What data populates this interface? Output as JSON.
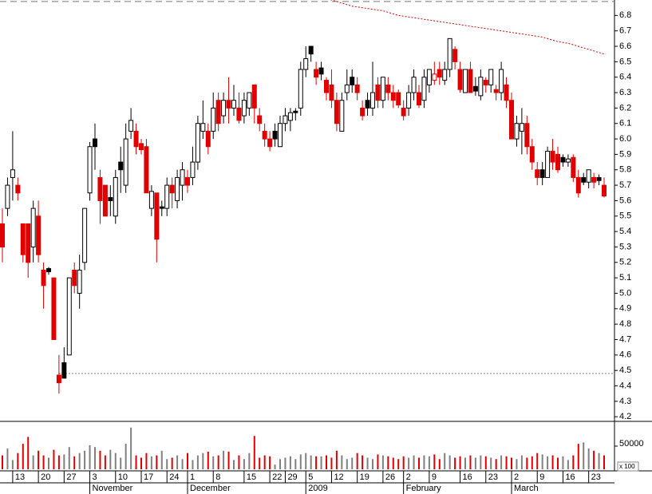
{
  "chart_data": {
    "type": "candlestick",
    "ohlc": [
      [
        5.45,
        5.55,
        5.2,
        5.3
      ],
      [
        5.55,
        5.75,
        5.5,
        5.7
      ],
      [
        5.75,
        6.05,
        5.6,
        5.8
      ],
      [
        5.7,
        5.75,
        5.6,
        5.65
      ],
      [
        5.45,
        5.45,
        5.2,
        5.25
      ],
      [
        5.45,
        5.45,
        5.1,
        5.2
      ],
      [
        5.3,
        5.6,
        5.2,
        5.55
      ],
      [
        5.5,
        5.6,
        5.2,
        5.25
      ],
      [
        5.15,
        5.2,
        4.9,
        5.05
      ],
      [
        5.16,
        5.17,
        5.12,
        5.14
      ],
      [
        5.1,
        5.1,
        4.7,
        4.7
      ],
      [
        4.47,
        4.6,
        4.35,
        4.42
      ],
      [
        4.55,
        4.65,
        4.45,
        4.45
      ],
      [
        4.6,
        5.1,
        4.6,
        5.1
      ],
      [
        5.15,
        5.2,
        5.0,
        5.05
      ],
      [
        5.0,
        5.25,
        4.9,
        5.15
      ],
      [
        5.2,
        5.55,
        5.15,
        5.55
      ],
      [
        5.65,
        5.98,
        5.6,
        5.95
      ],
      [
        6.0,
        6.1,
        5.8,
        5.95
      ],
      [
        5.75,
        5.8,
        5.45,
        5.6
      ],
      [
        5.7,
        5.7,
        5.5,
        5.5
      ],
      [
        5.62,
        5.7,
        5.5,
        5.6
      ],
      [
        5.5,
        5.8,
        5.45,
        5.75
      ],
      [
        5.85,
        5.95,
        5.65,
        5.8
      ],
      [
        5.7,
        6.1,
        5.65,
        6.0
      ],
      [
        6.05,
        6.2,
        6.0,
        6.12
      ],
      [
        6.05,
        6.1,
        5.9,
        5.95
      ],
      [
        5.97,
        6.0,
        5.9,
        5.93
      ],
      [
        5.95,
        6.0,
        5.65,
        5.65
      ],
      [
        5.55,
        5.7,
        5.5,
        5.66
      ],
      [
        5.65,
        5.65,
        5.2,
        5.35
      ],
      [
        5.56,
        5.6,
        5.5,
        5.55
      ],
      [
        5.55,
        5.75,
        5.5,
        5.7
      ],
      [
        5.7,
        5.75,
        5.55,
        5.65
      ],
      [
        5.6,
        5.8,
        5.55,
        5.75
      ],
      [
        5.7,
        5.85,
        5.6,
        5.8
      ],
      [
        5.75,
        5.8,
        5.65,
        5.7
      ],
      [
        5.75,
        5.95,
        5.7,
        5.85
      ],
      [
        5.85,
        6.15,
        5.8,
        6.1
      ],
      [
        6.05,
        6.25,
        6.0,
        6.1
      ],
      [
        6.05,
        6.1,
        5.9,
        5.95
      ],
      [
        6.05,
        6.3,
        6.0,
        6.2
      ],
      [
        6.25,
        6.3,
        6.05,
        6.1
      ],
      [
        6.15,
        6.3,
        6.1,
        6.25
      ],
      [
        6.25,
        6.4,
        6.1,
        6.2
      ],
      [
        6.2,
        6.35,
        6.15,
        6.25
      ],
      [
        6.2,
        6.3,
        6.1,
        6.12
      ],
      [
        6.15,
        6.3,
        6.1,
        6.25
      ],
      [
        6.2,
        6.3,
        6.15,
        6.3
      ],
      [
        6.35,
        6.35,
        6.1,
        6.2
      ],
      [
        6.15,
        6.2,
        6.05,
        6.1
      ],
      [
        6.05,
        6.1,
        5.95,
        6.0
      ],
      [
        6.0,
        6.05,
        5.92,
        5.95
      ],
      [
        6.05,
        6.1,
        5.95,
        6.0
      ],
      [
        5.95,
        6.15,
        5.95,
        6.1
      ],
      [
        6.1,
        6.2,
        6.05,
        6.15
      ],
      [
        6.12,
        6.2,
        6.05,
        6.17
      ],
      [
        6.18,
        6.2,
        6.12,
        6.17
      ],
      [
        6.2,
        6.5,
        6.15,
        6.45
      ],
      [
        6.45,
        6.6,
        6.4,
        6.52
      ],
      [
        6.6,
        6.6,
        6.5,
        6.55
      ],
      [
        6.45,
        6.5,
        6.35,
        6.4
      ],
      [
        6.46,
        6.5,
        6.38,
        6.42
      ],
      [
        6.38,
        6.4,
        6.25,
        6.3
      ],
      [
        6.35,
        6.45,
        6.2,
        6.25
      ],
      [
        6.25,
        6.3,
        6.05,
        6.1
      ],
      [
        6.05,
        6.3,
        6.05,
        6.25
      ],
      [
        6.3,
        6.45,
        6.25,
        6.35
      ],
      [
        6.4,
        6.45,
        6.3,
        6.35
      ],
      [
        6.35,
        6.4,
        6.25,
        6.3
      ],
      [
        6.2,
        6.25,
        6.12,
        6.15
      ],
      [
        6.25,
        6.3,
        6.15,
        6.2
      ],
      [
        6.2,
        6.5,
        6.15,
        6.3
      ],
      [
        6.35,
        6.4,
        6.2,
        6.25
      ],
      [
        6.25,
        6.4,
        6.2,
        6.4
      ],
      [
        6.35,
        6.4,
        6.25,
        6.3
      ],
      [
        6.3,
        6.35,
        6.2,
        6.25
      ],
      [
        6.3,
        6.32,
        6.2,
        6.22
      ],
      [
        6.2,
        6.25,
        6.12,
        6.15
      ],
      [
        6.2,
        6.35,
        6.15,
        6.3
      ],
      [
        6.3,
        6.45,
        6.25,
        6.4
      ],
      [
        6.3,
        6.35,
        6.2,
        6.22
      ],
      [
        6.25,
        6.45,
        6.2,
        6.4
      ],
      [
        6.35,
        6.45,
        6.3,
        6.45
      ],
      [
        6.38,
        6.5,
        6.35,
        6.42
      ],
      [
        6.45,
        6.5,
        6.35,
        6.4
      ],
      [
        6.38,
        6.5,
        6.35,
        6.45
      ],
      [
        6.45,
        6.65,
        6.4,
        6.65
      ],
      [
        6.58,
        6.6,
        6.45,
        6.5
      ],
      [
        6.45,
        6.5,
        6.3,
        6.32
      ],
      [
        6.3,
        6.45,
        6.3,
        6.45
      ],
      [
        6.45,
        6.5,
        6.3,
        6.3
      ],
      [
        6.34,
        6.4,
        6.28,
        6.31
      ],
      [
        6.28,
        6.45,
        6.25,
        6.4
      ],
      [
        6.38,
        6.4,
        6.3,
        6.35
      ],
      [
        6.35,
        6.45,
        6.3,
        6.45
      ],
      [
        6.32,
        6.35,
        6.25,
        6.3
      ],
      [
        6.3,
        6.5,
        6.25,
        6.45
      ],
      [
        6.35,
        6.4,
        6.2,
        6.25
      ],
      [
        6.25,
        6.3,
        6.0,
        6.0
      ],
      [
        6.0,
        6.15,
        5.95,
        6.1
      ],
      [
        6.05,
        6.2,
        5.9,
        6.1
      ],
      [
        6.1,
        6.15,
        5.9,
        5.95
      ],
      [
        5.95,
        6.0,
        5.8,
        5.85
      ],
      [
        5.8,
        5.85,
        5.7,
        5.75
      ],
      [
        5.8,
        5.85,
        5.7,
        5.75
      ],
      [
        5.75,
        5.95,
        5.75,
        5.92
      ],
      [
        5.92,
        6.0,
        5.8,
        5.85
      ],
      [
        5.9,
        5.95,
        5.78,
        5.8
      ],
      [
        5.88,
        5.9,
        5.82,
        5.85
      ],
      [
        5.85,
        5.9,
        5.82,
        5.87
      ],
      [
        5.88,
        5.9,
        5.72,
        5.75
      ],
      [
        5.75,
        5.8,
        5.62,
        5.65
      ],
      [
        5.75,
        5.78,
        5.7,
        5.72
      ],
      [
        5.72,
        5.8,
        5.68,
        5.8
      ],
      [
        5.75,
        5.78,
        5.68,
        5.72
      ],
      [
        5.75,
        5.77,
        5.7,
        5.73
      ],
      [
        5.7,
        5.75,
        5.62,
        5.63
      ]
    ],
    "volume": [
      30000,
      45000,
      20000,
      35000,
      55000,
      70000,
      30000,
      40000,
      30000,
      25000,
      42000,
      30000,
      32000,
      48000,
      28000,
      35000,
      40000,
      52000,
      48000,
      40000,
      30000,
      42000,
      35000,
      25000,
      55000,
      90000,
      30000,
      25000,
      35000,
      28000,
      30000,
      40000,
      22000,
      25000,
      30000,
      22000,
      35000,
      20000,
      30000,
      35000,
      38000,
      28000,
      30000,
      40000,
      38000,
      20000,
      30000,
      22000,
      35000,
      72000,
      25000,
      30000,
      28000,
      10000,
      22000,
      25000,
      28000,
      22000,
      32000,
      35000,
      30000,
      28000,
      28000,
      30000,
      25000,
      40000,
      30000,
      22000,
      25000,
      35000,
      30000,
      25000,
      22000,
      32000,
      30000,
      28000,
      25000,
      22000,
      28000,
      25000,
      30000,
      25000,
      30000,
      28000,
      32000,
      22000,
      35000,
      30000,
      25000,
      28000,
      25000,
      30000,
      25000,
      30000,
      28000,
      25000,
      22000,
      30000,
      28000,
      25000,
      22000,
      30000,
      25000,
      28000,
      35000,
      32000,
      28000,
      30000,
      25000,
      28000,
      20000,
      30000,
      55000,
      58000,
      45000,
      40000,
      35000,
      30000
    ],
    "ma": [
      null,
      null,
      null,
      null,
      null,
      null,
      null,
      null,
      null,
      null,
      null,
      null,
      null,
      null,
      null,
      null,
      null,
      null,
      null,
      null,
      null,
      null,
      null,
      null,
      null,
      null,
      null,
      null,
      null,
      null,
      null,
      null,
      null,
      null,
      null,
      null,
      null,
      null,
      null,
      null,
      null,
      null,
      null,
      null,
      null,
      null,
      null,
      null,
      null,
      null,
      null,
      null,
      null,
      null,
      null,
      null,
      null,
      null,
      null,
      null,
      null,
      null,
      6.92,
      6.91,
      6.9,
      6.89,
      6.88,
      6.87,
      6.86,
      6.855,
      6.85,
      6.845,
      6.84,
      6.835,
      6.83,
      6.82,
      6.81,
      6.8,
      6.795,
      6.79,
      6.785,
      6.78,
      6.775,
      6.77,
      6.765,
      6.76,
      6.755,
      6.75,
      6.745,
      6.74,
      6.735,
      6.73,
      6.725,
      6.72,
      6.715,
      6.71,
      6.705,
      6.7,
      6.695,
      6.69,
      6.685,
      6.68,
      6.675,
      6.67,
      6.665,
      6.66,
      6.65,
      6.64,
      6.63,
      6.625,
      6.62,
      6.61,
      6.6,
      6.59,
      6.58,
      6.57,
      6.56,
      6.55
    ],
    "hlines": [
      6.89,
      4.48
    ],
    "ylim": [
      4.17,
      6.9
    ],
    "yticks": [
      4.2,
      4.3,
      4.4,
      4.5,
      4.6,
      4.7,
      4.8,
      4.9,
      {
        "value": 5,
        "label": "5.0"
      },
      5.1,
      5.2,
      5.3,
      5.4,
      5.5,
      5.6,
      5.7,
      5.8,
      5.9,
      {
        "value": 6,
        "label": "6.0"
      },
      6.1,
      6.2,
      6.3,
      6.4,
      6.5,
      6.6,
      6.7,
      6.8
    ],
    "volume_ylim": [
      0,
      100000
    ],
    "volume_yticks": [
      50000
    ],
    "volume_unit": "x 100",
    "xticks": [
      {
        "value": 2,
        "label": "13"
      },
      {
        "value": 7,
        "label": "20"
      },
      {
        "value": 12,
        "label": "27"
      },
      {
        "value": 17,
        "label": "3"
      },
      {
        "value": 22,
        "label": "10"
      },
      {
        "value": 27,
        "label": "17"
      },
      {
        "value": 32,
        "label": "24"
      },
      {
        "value": 36,
        "label": "1"
      },
      {
        "value": 41,
        "label": "8"
      },
      {
        "value": 47,
        "label": "15"
      },
      {
        "value": 52,
        "label": "22"
      },
      {
        "value": 55,
        "label": "29"
      },
      {
        "value": 59,
        "label": "5"
      },
      {
        "value": 64,
        "label": "12"
      },
      {
        "value": 69,
        "label": "19"
      },
      {
        "value": 74,
        "label": "26"
      },
      {
        "value": 78,
        "label": "2"
      },
      {
        "value": 83,
        "label": "9"
      },
      {
        "value": 89,
        "label": "16"
      },
      {
        "value": 94,
        "label": "23"
      },
      {
        "value": 99,
        "label": "2"
      },
      {
        "value": 104,
        "label": "9"
      },
      {
        "value": 109,
        "label": "16"
      },
      {
        "value": 114,
        "label": "23"
      }
    ],
    "month_ticks": [
      {
        "value": 17,
        "label": "November"
      },
      {
        "value": 36,
        "label": "December"
      },
      {
        "value": 59,
        "label": "2009"
      },
      {
        "value": 78,
        "label": "February"
      },
      {
        "value": 99,
        "label": "March"
      }
    ],
    "down_color": "#e00000",
    "up_color": "#000000",
    "volume_color": "#808080",
    "ma_color": "#e00000"
  }
}
